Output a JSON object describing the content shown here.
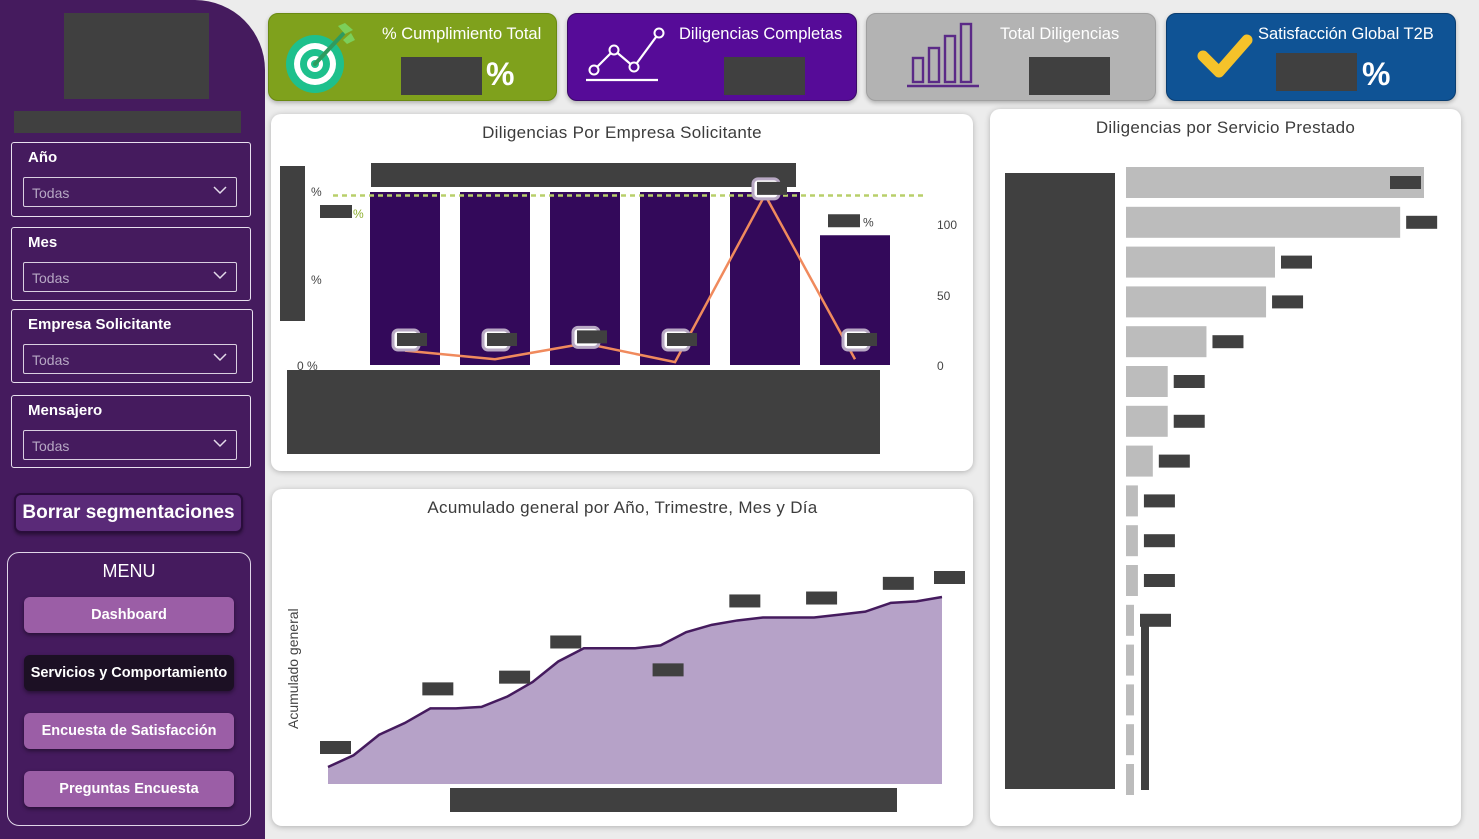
{
  "sidebar": {
    "slicers": [
      {
        "label": "Año",
        "value": "Todas"
      },
      {
        "label": "Mes",
        "value": "Todas"
      },
      {
        "label": "Empresa Solicitante",
        "value": "Todas"
      },
      {
        "label": "Mensajero",
        "value": "Todas"
      }
    ],
    "clear_label": "Borrar segmentaciones",
    "menu": {
      "title": "MENU",
      "items": [
        {
          "label": "Dashboard"
        },
        {
          "label": "Servicios y Comportamiento",
          "active": true
        },
        {
          "label": "Encuesta de Satisfacción"
        },
        {
          "label": "Preguntas Encuesta"
        }
      ]
    }
  },
  "kpis": [
    {
      "title": "% Cumplimiento Total",
      "unit": "%",
      "color": "#7fa11c",
      "icon": "target-icon"
    },
    {
      "title": "Diligencias Completas",
      "color": "#560b98",
      "icon": "line-trend-icon"
    },
    {
      "title": "Total Diligencias",
      "color": "#b3b3b3",
      "icon": "bar-chart-icon"
    },
    {
      "title": "Satisfacción Global T2B",
      "unit": "%",
      "color": "#0f5395",
      "icon": "check-icon"
    }
  ],
  "charts": {
    "empresa": {
      "title": "Diligencias Por Empresa Solicitante",
      "left_ticks": [
        "%",
        "%",
        "0 %"
      ],
      "right_ticks": [
        "100",
        "50",
        "0"
      ],
      "bar_label_unit": "%",
      "target_label_unit": "%"
    },
    "acumulado": {
      "title": "Acumulado general por Año, Trimestre, Mes y Día",
      "ylabel": "Acumulado general"
    },
    "servicio": {
      "title": "Diligencias por Servicio Prestado"
    }
  },
  "chart_data": [
    {
      "type": "bar",
      "title": "Diligencias Por Empresa Solicitante",
      "categories": [
        "",
        "",
        "",
        "",
        "",
        ""
      ],
      "series": [
        {
          "values": [
            100,
            100,
            100,
            100,
            100,
            75
          ],
          "color": "#33095a"
        },
        {
          "values": [
            10,
            4,
            15,
            2,
            118,
            4
          ],
          "color": "#f08a5d"
        }
      ],
      "yright_range": [
        0,
        120
      ],
      "target_line": 98
    },
    {
      "type": "area",
      "title": "Acumulado general por Año, Trimestre, Mes y Día",
      "ylabel": "Acumulado general",
      "values": [
        0,
        8,
        22,
        30,
        40,
        40,
        41,
        48,
        58,
        72,
        81,
        81,
        81,
        83,
        92,
        97,
        100,
        102,
        102,
        102,
        104,
        106,
        112,
        113,
        116
      ],
      "color": "#b6a2c8",
      "line_color": "#451b5e"
    },
    {
      "type": "bar",
      "orientation": "horizontal",
      "title": "Diligencias por Servicio Prestado",
      "values": [
        100,
        92,
        50,
        47,
        27,
        14,
        14,
        9,
        4,
        4,
        4,
        1,
        1,
        1,
        1,
        1
      ],
      "xlim": [
        0,
        100
      ],
      "color": "#bcbcbc"
    }
  ]
}
